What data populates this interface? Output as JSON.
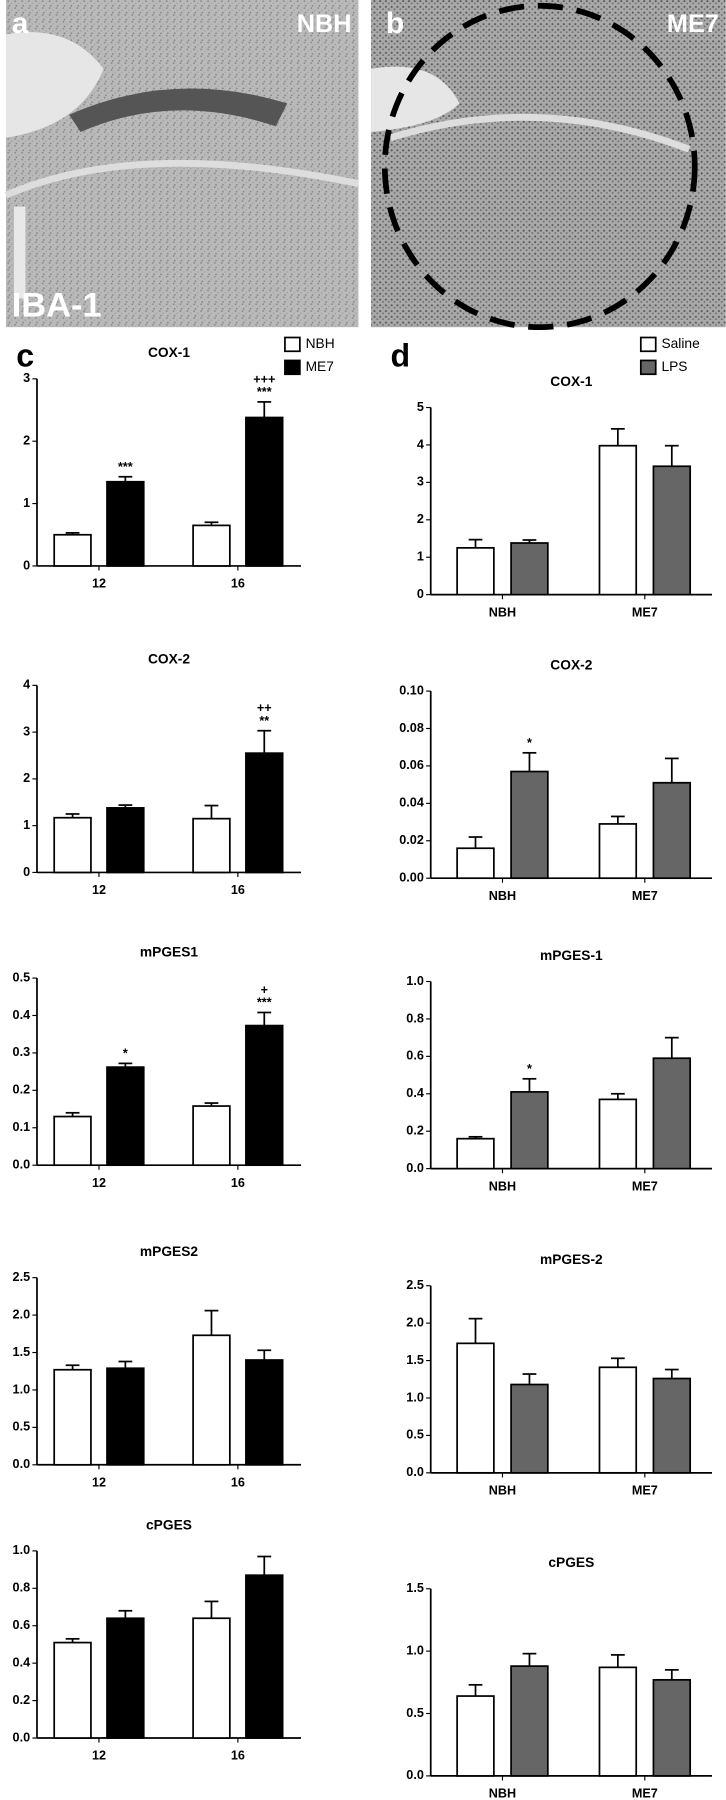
{
  "images": [
    {
      "label": "a",
      "title": "NBH",
      "stain": "IBA-1"
    },
    {
      "label": "b",
      "title": "ME7"
    }
  ],
  "panels": [
    "c",
    "d"
  ],
  "chart_data": [
    {
      "type": "bar",
      "title": "COX-1",
      "categories": [
        "12",
        "16"
      ],
      "legend": true,
      "ylim": [
        0,
        3
      ],
      "yticks": [
        0,
        1,
        2,
        3
      ],
      "series": [
        {
          "name": "NBH",
          "color": "#ffffff",
          "values": [
            0.5,
            0.65
          ],
          "errors": [
            0.03,
            0.05
          ],
          "annotations": [
            null,
            null
          ]
        },
        {
          "name": "ME7",
          "color": "#000000",
          "values": [
            1.35,
            2.38
          ],
          "errors": [
            0.08,
            0.25
          ],
          "annotations": [
            [
              "***"
            ],
            [
              "+++",
              "***"
            ]
          ]
        }
      ]
    },
    {
      "type": "bar",
      "title": "COX-2",
      "categories": [
        "12",
        "16"
      ],
      "ylim": [
        0,
        4
      ],
      "yticks": [
        0,
        1,
        2,
        3,
        4
      ],
      "series": [
        {
          "name": "NBH",
          "color": "#ffffff",
          "values": [
            1.17,
            1.15
          ],
          "errors": [
            0.08,
            0.28
          ],
          "annotations": [
            null,
            null
          ]
        },
        {
          "name": "ME7",
          "color": "#000000",
          "values": [
            1.38,
            2.55
          ],
          "errors": [
            0.06,
            0.48
          ],
          "annotations": [
            null,
            [
              "++",
              "**"
            ]
          ]
        }
      ]
    },
    {
      "type": "bar",
      "title": "mPGES1",
      "categories": [
        "12",
        "16"
      ],
      "ylim": [
        0,
        0.5
      ],
      "yticks": [
        {
          "value": 0,
          "label": "0.0"
        },
        0.1,
        0.2,
        0.3,
        0.4,
        0.5
      ],
      "series": [
        {
          "name": "NBH",
          "color": "#ffffff",
          "values": [
            0.13,
            0.158
          ],
          "errors": [
            0.01,
            0.008
          ],
          "annotations": [
            null,
            null
          ]
        },
        {
          "name": "ME7",
          "color": "#000000",
          "values": [
            0.262,
            0.373
          ],
          "errors": [
            0.01,
            0.035
          ],
          "annotations": [
            [
              "*"
            ],
            [
              "+",
              "***"
            ]
          ]
        }
      ]
    },
    {
      "type": "bar",
      "title": "mPGES2",
      "categories": [
        "12",
        "16"
      ],
      "ylim": [
        0,
        2.5
      ],
      "yticks": [
        {
          "value": 0,
          "label": "0.0"
        },
        0.5,
        {
          "value": 1,
          "label": "1.0"
        },
        1.5,
        {
          "value": 2,
          "label": "2.0"
        },
        2.5
      ],
      "series": [
        {
          "name": "NBH",
          "color": "#ffffff",
          "values": [
            1.27,
            1.73
          ],
          "errors": [
            0.06,
            0.33
          ],
          "annotations": [
            null,
            null
          ]
        },
        {
          "name": "ME7",
          "color": "#000000",
          "values": [
            1.29,
            1.4
          ],
          "errors": [
            0.09,
            0.13
          ],
          "annotations": [
            null,
            null
          ]
        }
      ]
    },
    {
      "type": "bar",
      "title": "cPGES",
      "categories": [
        "12",
        "16"
      ],
      "ylim": [
        0,
        1
      ],
      "yticks": [
        {
          "value": 0,
          "label": "0.0"
        },
        0.2,
        0.4,
        0.6,
        0.8,
        {
          "value": 1,
          "label": "1.0"
        }
      ],
      "series": [
        {
          "name": "NBH",
          "color": "#ffffff",
          "values": [
            0.51,
            0.64
          ],
          "errors": [
            0.02,
            0.09
          ],
          "annotations": [
            null,
            null
          ]
        },
        {
          "name": "ME7",
          "color": "#000000",
          "values": [
            0.64,
            0.87
          ],
          "errors": [
            0.04,
            0.1
          ],
          "annotations": [
            null,
            null
          ]
        }
      ]
    },
    {
      "type": "bar",
      "title": "COX-1",
      "categories": [
        "NBH",
        "ME7"
      ],
      "legend": true,
      "ylim": [
        0,
        5
      ],
      "yticks": [
        0,
        1,
        2,
        3,
        4,
        5
      ],
      "series": [
        {
          "name": "Saline",
          "color": "#ffffff",
          "values": [
            1.25,
            3.98
          ],
          "errors": [
            0.22,
            0.45
          ],
          "annotations": [
            null,
            null
          ]
        },
        {
          "name": "LPS",
          "color": "#666666",
          "values": [
            1.38,
            3.43
          ],
          "errors": [
            0.08,
            0.55
          ],
          "annotations": [
            null,
            null
          ]
        }
      ]
    },
    {
      "type": "bar",
      "title": "COX-2",
      "categories": [
        "NBH",
        "ME7"
      ],
      "ylim": [
        0,
        0.1
      ],
      "yticks": [
        {
          "value": 0,
          "label": "0.00"
        },
        {
          "value": 0.02,
          "label": "0.02"
        },
        {
          "value": 0.04,
          "label": "0.04"
        },
        {
          "value": 0.06,
          "label": "0.06"
        },
        {
          "value": 0.08,
          "label": "0.08"
        },
        {
          "value": 0.1,
          "label": "0.10"
        }
      ],
      "series": [
        {
          "name": "Saline",
          "color": "#ffffff",
          "values": [
            0.016,
            0.029
          ],
          "errors": [
            0.006,
            0.004
          ],
          "annotations": [
            null,
            null
          ]
        },
        {
          "name": "LPS",
          "color": "#666666",
          "values": [
            0.057,
            0.051
          ],
          "errors": [
            0.01,
            0.013
          ],
          "annotations": [
            [
              "*"
            ],
            null
          ]
        }
      ]
    },
    {
      "type": "bar",
      "title": "mPGES-1",
      "categories": [
        "NBH",
        "ME7"
      ],
      "ylim": [
        0,
        1
      ],
      "yticks": [
        {
          "value": 0,
          "label": "0.0"
        },
        0.2,
        0.4,
        0.6,
        0.8,
        {
          "value": 1,
          "label": "1.0"
        }
      ],
      "series": [
        {
          "name": "Saline",
          "color": "#ffffff",
          "values": [
            0.16,
            0.37
          ],
          "errors": [
            0.01,
            0.03
          ],
          "annotations": [
            null,
            null
          ]
        },
        {
          "name": "LPS",
          "color": "#666666",
          "values": [
            0.41,
            0.59
          ],
          "errors": [
            0.07,
            0.11
          ],
          "annotations": [
            [
              "*"
            ],
            null
          ]
        }
      ]
    },
    {
      "type": "bar",
      "title": "mPGES-2",
      "categories": [
        "NBH",
        "ME7"
      ],
      "ylim": [
        0,
        2.5
      ],
      "yticks": [
        {
          "value": 0,
          "label": "0.0"
        },
        0.5,
        {
          "value": 1,
          "label": "1.0"
        },
        1.5,
        {
          "value": 2,
          "label": "2.0"
        },
        2.5
      ],
      "series": [
        {
          "name": "Saline",
          "color": "#ffffff",
          "values": [
            1.73,
            1.41
          ],
          "errors": [
            0.33,
            0.12
          ],
          "annotations": [
            null,
            null
          ]
        },
        {
          "name": "LPS",
          "color": "#666666",
          "values": [
            1.18,
            1.26
          ],
          "errors": [
            0.14,
            0.12
          ],
          "annotations": [
            null,
            null
          ]
        }
      ]
    },
    {
      "type": "bar",
      "title": "cPGES",
      "categories": [
        "NBH",
        "ME7"
      ],
      "ylim": [
        0,
        1.5
      ],
      "yticks": [
        {
          "value": 0,
          "label": "0.0"
        },
        0.5,
        {
          "value": 1,
          "label": "1.0"
        },
        1.5
      ],
      "series": [
        {
          "name": "Saline",
          "color": "#ffffff",
          "values": [
            0.64,
            0.87
          ],
          "errors": [
            0.09,
            0.1
          ],
          "annotations": [
            null,
            null
          ]
        },
        {
          "name": "LPS",
          "color": "#666666",
          "values": [
            0.88,
            0.77
          ],
          "errors": [
            0.1,
            0.08
          ],
          "annotations": [
            null,
            null
          ]
        }
      ]
    }
  ]
}
